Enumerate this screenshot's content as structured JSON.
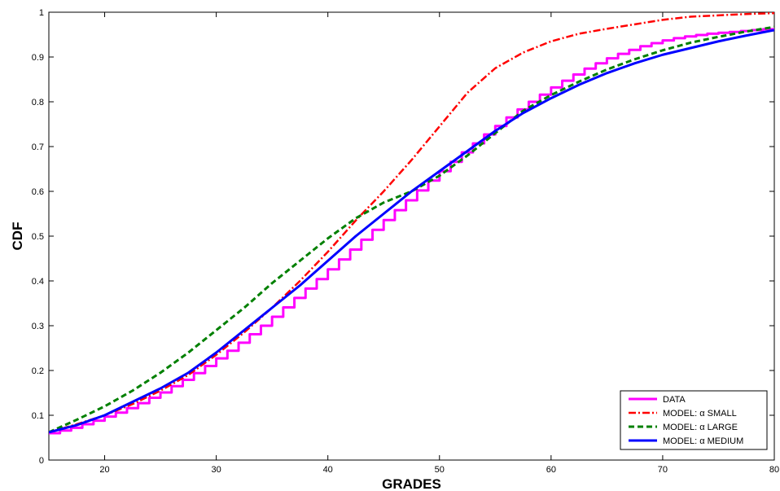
{
  "chart_data": {
    "type": "line",
    "title": "",
    "xlabel": "GRADES",
    "ylabel": "CDF",
    "xlim": [
      15,
      80
    ],
    "ylim": [
      0,
      1
    ],
    "grid": false,
    "legend_position": "bottom-right",
    "x_ticks": [
      20,
      30,
      40,
      50,
      60,
      70,
      80
    ],
    "y_ticks": [
      0,
      0.1,
      0.2,
      0.3,
      0.4,
      0.5,
      0.6,
      0.7,
      0.8,
      0.9,
      1
    ],
    "x_tick_labels": [
      "20",
      "30",
      "40",
      "50",
      "60",
      "70",
      "80"
    ],
    "y_tick_labels": [
      "0",
      "0.1",
      "0.2",
      "0.3",
      "0.4",
      "0.5",
      "0.6",
      "0.7",
      "0.8",
      "0.9",
      "1"
    ],
    "series": [
      {
        "name": "DATA",
        "color": "#ff00ff",
        "style": "step",
        "x": [
          15,
          16,
          17,
          18,
          19,
          20,
          21,
          22,
          23,
          24,
          25,
          26,
          27,
          28,
          29,
          30,
          31,
          32,
          33,
          34,
          35,
          36,
          37,
          38,
          39,
          40,
          41,
          42,
          43,
          44,
          45,
          46,
          47,
          48,
          49,
          50,
          51,
          52,
          53,
          54,
          55,
          56,
          57,
          58,
          59,
          60,
          61,
          62,
          63,
          64,
          65,
          66,
          67,
          68,
          69,
          70,
          71,
          72,
          73,
          74,
          75,
          76,
          77,
          78,
          79,
          80
        ],
        "y": [
          0.06,
          0.066,
          0.072,
          0.08,
          0.088,
          0.097,
          0.106,
          0.116,
          0.127,
          0.139,
          0.151,
          0.165,
          0.179,
          0.194,
          0.21,
          0.227,
          0.244,
          0.262,
          0.281,
          0.3,
          0.32,
          0.341,
          0.362,
          0.383,
          0.404,
          0.426,
          0.448,
          0.47,
          0.492,
          0.514,
          0.536,
          0.558,
          0.58,
          0.602,
          0.624,
          0.645,
          0.666,
          0.687,
          0.707,
          0.727,
          0.746,
          0.765,
          0.783,
          0.8,
          0.816,
          0.832,
          0.847,
          0.861,
          0.874,
          0.886,
          0.897,
          0.907,
          0.916,
          0.924,
          0.931,
          0.937,
          0.942,
          0.946,
          0.949,
          0.952,
          0.954,
          0.956,
          0.958,
          0.96,
          0.962,
          0.964
        ]
      },
      {
        "name": "MODEL: α SMALL",
        "color": "#ff0000",
        "style": "dashdot",
        "x": [
          15,
          17.5,
          20,
          22.5,
          25,
          27.5,
          30,
          32.5,
          35,
          37.5,
          40,
          42.5,
          45,
          47.5,
          50,
          52.5,
          55,
          57.5,
          60,
          62.5,
          65,
          67.5,
          70,
          72.5,
          75,
          77.5,
          80
        ],
        "y": [
          0.062,
          0.08,
          0.1,
          0.125,
          0.155,
          0.19,
          0.235,
          0.285,
          0.34,
          0.4,
          0.465,
          0.535,
          0.6,
          0.67,
          0.745,
          0.82,
          0.875,
          0.91,
          0.935,
          0.952,
          0.963,
          0.973,
          0.983,
          0.99,
          0.993,
          0.996,
          0.998
        ]
      },
      {
        "name": "MODEL: α LARGE",
        "color": "#008000",
        "style": "dashed",
        "x": [
          15,
          17.5,
          20,
          22.5,
          25,
          27.5,
          30,
          32.5,
          35,
          37.5,
          40,
          42.5,
          45,
          47.5,
          50,
          52.5,
          55,
          57.5,
          60,
          62.5,
          65,
          67.5,
          70,
          72.5,
          75,
          77.5,
          80
        ],
        "y": [
          0.062,
          0.09,
          0.12,
          0.155,
          0.195,
          0.24,
          0.29,
          0.34,
          0.395,
          0.445,
          0.495,
          0.54,
          0.575,
          0.6,
          0.635,
          0.68,
          0.73,
          0.78,
          0.815,
          0.845,
          0.872,
          0.895,
          0.915,
          0.932,
          0.945,
          0.957,
          0.967
        ]
      },
      {
        "name": "MODEL: α MEDIUM",
        "color": "#0000ff",
        "style": "solid",
        "x": [
          15,
          17.5,
          20,
          22.5,
          25,
          27.5,
          30,
          32.5,
          35,
          37.5,
          40,
          42.5,
          45,
          47.5,
          50,
          52.5,
          55,
          57.5,
          60,
          62.5,
          65,
          67.5,
          70,
          72.5,
          75,
          77.5,
          80
        ],
        "y": [
          0.062,
          0.078,
          0.1,
          0.13,
          0.16,
          0.195,
          0.24,
          0.29,
          0.34,
          0.39,
          0.445,
          0.5,
          0.55,
          0.6,
          0.645,
          0.69,
          0.735,
          0.775,
          0.808,
          0.838,
          0.864,
          0.886,
          0.905,
          0.92,
          0.935,
          0.948,
          0.96
        ]
      }
    ]
  }
}
